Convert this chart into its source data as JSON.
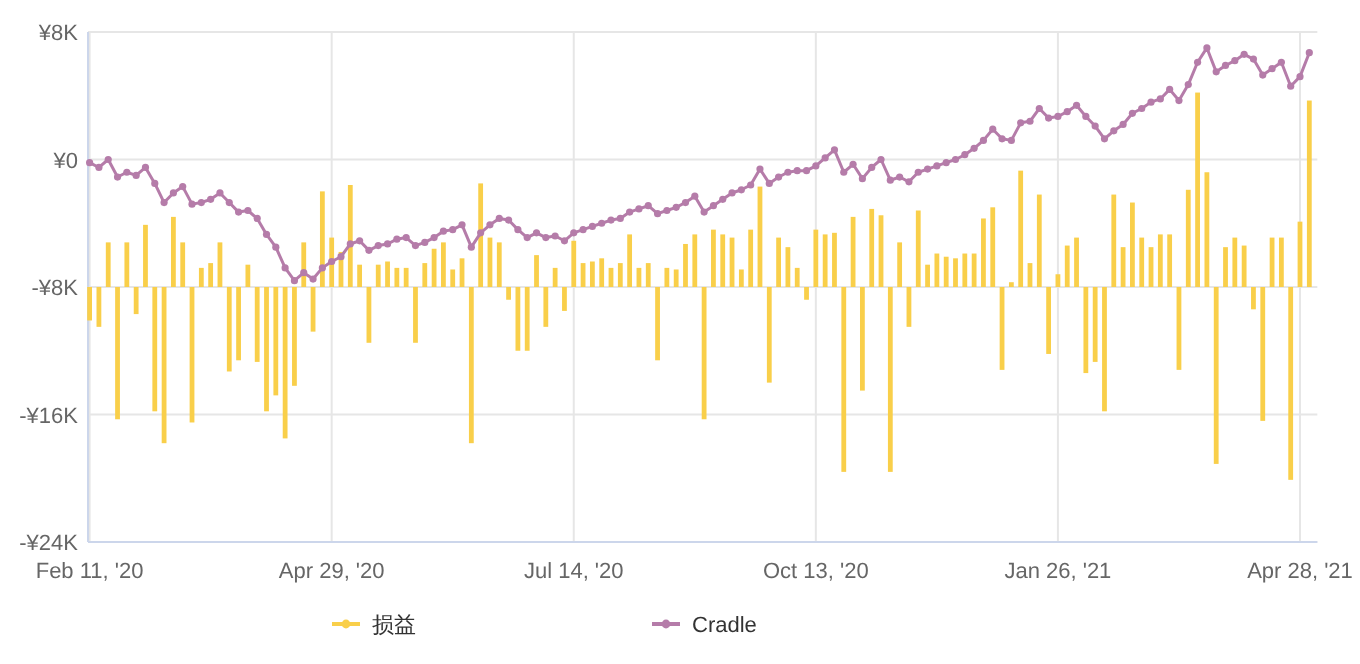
{
  "chart_data": {
    "type": "bar",
    "grid": true,
    "legend": "bottom",
    "ylim": [
      -24,
      8
    ],
    "yticks": [
      {
        "value": -24,
        "label": "-¥24K"
      },
      {
        "value": -16,
        "label": "-¥16K"
      },
      {
        "value": -8,
        "label": "-¥8K"
      },
      {
        "value": 0,
        "label": "¥0"
      },
      {
        "value": 8,
        "label": "¥8K"
      }
    ],
    "categories": [
      "Feb 11, '20",
      null,
      null,
      null,
      null,
      null,
      null,
      null,
      null,
      null,
      null,
      null,
      null,
      null,
      null,
      null,
      null,
      null,
      null,
      null,
      null,
      null,
      null,
      null,
      null,
      null,
      "Apr 29, '20",
      null,
      null,
      null,
      null,
      null,
      null,
      null,
      null,
      null,
      null,
      null,
      null,
      null,
      null,
      null,
      null,
      null,
      null,
      null,
      null,
      null,
      null,
      null,
      null,
      null,
      "Jul 14, '20",
      null,
      null,
      null,
      null,
      null,
      null,
      null,
      null,
      null,
      null,
      null,
      null,
      null,
      null,
      null,
      null,
      null,
      null,
      null,
      null,
      null,
      null,
      null,
      null,
      null,
      "Oct 13, '20",
      null,
      null,
      null,
      null,
      null,
      null,
      null,
      null,
      null,
      null,
      null,
      null,
      null,
      null,
      null,
      null,
      null,
      null,
      null,
      null,
      null,
      null,
      null,
      null,
      null,
      "Jan 26, '21",
      null,
      null,
      null,
      null,
      null,
      null,
      null,
      null,
      null,
      null,
      null,
      null,
      null,
      null,
      null,
      null,
      null,
      null,
      null,
      null,
      null,
      null,
      null,
      null,
      null,
      "Apr 28, '21",
      null
    ],
    "series": [
      {
        "name": "损益",
        "color": "#f9cf4a",
        "base": [
          -8,
          -8,
          -8,
          -8,
          -8,
          -8,
          -8,
          -8,
          -8,
          -8,
          -8,
          -8,
          -8,
          -8,
          -8,
          -8,
          -8,
          -8,
          -8,
          -8,
          -8,
          -8,
          -8,
          -8,
          -8,
          -8,
          -8,
          -8,
          -8,
          -8,
          -8,
          -8,
          -8,
          -8,
          -8,
          -8,
          -8,
          -8,
          -8,
          -8,
          -8,
          -8,
          -8,
          -8,
          -8,
          -8,
          -8,
          -8,
          -8,
          -8,
          -8,
          -8,
          -8,
          -8,
          -8,
          -8,
          -8,
          -8,
          -8,
          -8,
          -8,
          -8,
          -8,
          -8,
          -8,
          -8,
          -8,
          -8,
          -8,
          -8,
          -8,
          -8,
          -8,
          -8,
          -8,
          -8,
          -8,
          -8,
          -8,
          -8,
          -8,
          -8,
          -8,
          -8,
          -8,
          -8,
          -8,
          -8,
          -8,
          -8,
          -8,
          -8,
          -8,
          -8,
          -8,
          -8,
          -8,
          -8,
          -8,
          -8,
          -8,
          -8,
          -8,
          -8,
          -8,
          -8,
          -8,
          -8,
          -8,
          -8,
          -8,
          -8,
          -8,
          -8,
          -8,
          -8,
          -8,
          -8,
          -8,
          -8,
          -8,
          -8,
          -8,
          -8,
          -8,
          -8,
          -8,
          -8,
          -8,
          -8,
          -8,
          -8
        ],
        "values": [
          -2.1,
          -2.5,
          2.8,
          -8.3,
          2.8,
          -1.7,
          3.9,
          -7.8,
          -9.8,
          4.4,
          2.8,
          -8.5,
          1.2,
          1.5,
          2.8,
          -5.3,
          -4.6,
          1.4,
          -4.7,
          -7.8,
          -6.8,
          -9.5,
          -6.2,
          2.8,
          -2.8,
          6.0,
          3.1,
          2.2,
          6.4,
          1.4,
          -3.5,
          1.4,
          1.6,
          1.2,
          1.2,
          -3.5,
          1.5,
          2.4,
          2.8,
          1.1,
          1.8,
          -9.8,
          6.5,
          3.1,
          2.8,
          -0.8,
          -4.0,
          -4.0,
          2.0,
          -2.5,
          1.2,
          -1.5,
          2.9,
          1.5,
          1.6,
          1.8,
          1.2,
          1.5,
          3.3,
          1.2,
          1.5,
          -4.6,
          1.2,
          1.1,
          2.7,
          3.3,
          -8.3,
          3.6,
          3.3,
          3.1,
          1.1,
          3.6,
          6.3,
          -6.0,
          3.1,
          2.5,
          1.2,
          -0.8,
          3.6,
          3.3,
          3.4,
          -11.6,
          4.4,
          -6.5,
          4.9,
          4.5,
          -11.6,
          2.8,
          -2.5,
          4.8,
          1.4,
          2.1,
          1.9,
          1.8,
          2.1,
          2.1,
          4.3,
          5.0,
          -5.2,
          0.3,
          7.3,
          1.5,
          5.8,
          -4.2,
          0.8,
          2.6,
          3.1,
          -5.4,
          -4.7,
          -7.8,
          5.8,
          2.5,
          5.3,
          3.1,
          2.5,
          3.3,
          3.3,
          -5.2,
          6.1,
          12.2,
          7.2,
          -11.1,
          2.5,
          3.1,
          2.6,
          -1.4,
          -8.4,
          3.1,
          3.1,
          -12.1,
          4.1,
          11.7
        ]
      },
      {
        "name": "Cradle",
        "type": "line",
        "color": "#b57ca9",
        "marker": "circle",
        "line_style": "solid",
        "values": [
          -0.2,
          -0.5,
          0.0,
          -1.1,
          -0.8,
          -1.0,
          -0.5,
          -1.5,
          -2.7,
          -2.1,
          -1.7,
          -2.8,
          -2.7,
          -2.5,
          -2.1,
          -2.7,
          -3.3,
          -3.2,
          -3.7,
          -4.7,
          -5.5,
          -6.8,
          -7.6,
          -7.1,
          -7.5,
          -6.8,
          -6.4,
          -6.1,
          -5.3,
          -5.1,
          -5.7,
          -5.4,
          -5.3,
          -5.0,
          -4.9,
          -5.4,
          -5.2,
          -4.9,
          -4.5,
          -4.4,
          -4.1,
          -5.5,
          -4.6,
          -4.1,
          -3.7,
          -3.8,
          -4.4,
          -4.9,
          -4.6,
          -4.9,
          -4.8,
          -5.1,
          -4.6,
          -4.4,
          -4.2,
          -4.0,
          -3.8,
          -3.7,
          -3.3,
          -3.1,
          -2.9,
          -3.4,
          -3.2,
          -3.0,
          -2.7,
          -2.3,
          -3.3,
          -2.9,
          -2.5,
          -2.1,
          -1.9,
          -1.6,
          -0.6,
          -1.5,
          -1.1,
          -0.8,
          -0.7,
          -0.7,
          -0.4,
          0.1,
          0.6,
          -0.8,
          -0.3,
          -1.2,
          -0.5,
          0.0,
          -1.3,
          -1.1,
          -1.4,
          -0.8,
          -0.6,
          -0.4,
          -0.2,
          0.0,
          0.3,
          0.7,
          1.2,
          1.9,
          1.3,
          1.2,
          2.3,
          2.4,
          3.2,
          2.6,
          2.7,
          3.0,
          3.4,
          2.7,
          2.1,
          1.3,
          1.8,
          2.2,
          2.9,
          3.2,
          3.6,
          3.8,
          4.4,
          3.7,
          4.7,
          6.1,
          7.0,
          5.5,
          5.9,
          6.2,
          6.6,
          6.3,
          5.3,
          5.7,
          6.1,
          4.6,
          5.2,
          6.7
        ]
      }
    ]
  }
}
